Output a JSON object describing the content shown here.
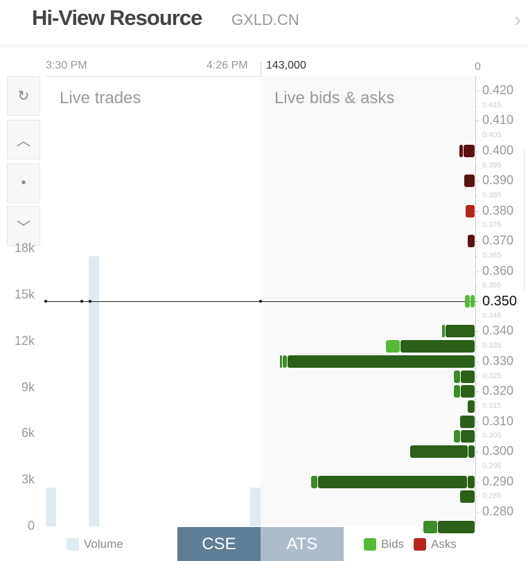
{
  "header": {
    "title": "Hi-View Resource",
    "ticker": "GXLD.CN",
    "next_icon": "chevron-right-icon"
  },
  "time_axis": {
    "start": "3:30 PM",
    "end": "4:26 PM"
  },
  "depth_axis": {
    "max_label": "143,000",
    "min_label": "0",
    "max": 143000
  },
  "panels": {
    "trades": "Live trades",
    "book": "Live bids & asks"
  },
  "controls": [
    {
      "icon": "refresh-icon",
      "glyph": "↻"
    },
    {
      "icon": "chevron-up-icon",
      "glyph": "︿"
    },
    {
      "icon": "dot-icon",
      "glyph": "•"
    },
    {
      "icon": "chevron-down-icon",
      "glyph": "﹀"
    }
  ],
  "chart_data": [
    {
      "type": "bar",
      "title": "Live trades",
      "ylim": [
        0,
        18000
      ],
      "yticks": [
        "0",
        "3k",
        "6k",
        "9k",
        "12k",
        "15k",
        "18k"
      ],
      "ytick_values": [
        0,
        3000,
        6000,
        9000,
        12000,
        15000,
        18000
      ],
      "volume": [
        {
          "time": "3:30 PM",
          "value": 2500
        },
        {
          "time": "3:45 PM",
          "value": 17500
        },
        {
          "time": "4:26 PM",
          "value": 2500
        }
      ],
      "last_price": 0.35,
      "trade_times": [
        "3:30 PM",
        "3:42 PM",
        "3:45 PM",
        "4:26 PM"
      ]
    },
    {
      "type": "bar",
      "title": "Live bids & asks",
      "price_ticks": [
        "0.420",
        "0.410",
        "0.400",
        "0.390",
        "0.380",
        "0.370",
        "0.360",
        "0.350",
        "0.340",
        "0.330",
        "0.320",
        "0.310",
        "0.300",
        "0.290",
        "0.280"
      ],
      "minor_ticks": [
        "0.415",
        "0.405",
        "0.395",
        "0.385",
        "0.375",
        "0.365",
        "0.355",
        "0.345",
        "0.335",
        "0.325",
        "0.315",
        "0.305",
        "0.295",
        "0.285"
      ],
      "current_price": "0.350",
      "xlim": [
        143000,
        0
      ],
      "levels": [
        {
          "price": 0.4,
          "side": "ask",
          "orders": [
            2800,
            7800
          ]
        },
        {
          "price": 0.39,
          "side": "ask",
          "orders": [
            7400
          ]
        },
        {
          "price": 0.38,
          "side": "ask",
          "orders": [
            6500
          ]
        },
        {
          "price": 0.37,
          "side": "ask",
          "orders": [
            5000
          ]
        },
        {
          "price": 0.35,
          "side": "bid",
          "orders": [
            3700,
            3200
          ]
        },
        {
          "price": 0.34,
          "side": "bid",
          "orders": [
            2300,
            19800
          ]
        },
        {
          "price": 0.335,
          "side": "bid",
          "orders": [
            9700,
            49800
          ]
        },
        {
          "price": 0.33,
          "side": "bid",
          "orders": [
            1800,
            3200,
            125000
          ]
        },
        {
          "price": 0.325,
          "side": "bid",
          "orders": [
            4600,
            9700
          ]
        },
        {
          "price": 0.32,
          "side": "bid",
          "orders": [
            4600,
            9700
          ]
        },
        {
          "price": 0.315,
          "side": "bid",
          "orders": [
            5000
          ]
        },
        {
          "price": 0.31,
          "side": "bid",
          "orders": [
            10100
          ]
        },
        {
          "price": 0.305,
          "side": "bid",
          "orders": [
            4600,
            9700
          ]
        },
        {
          "price": 0.3,
          "side": "bid",
          "orders": [
            38700,
            4600
          ]
        },
        {
          "price": 0.29,
          "side": "bid",
          "orders": [
            4600,
            99600,
            5000
          ]
        },
        {
          "price": 0.285,
          "side": "bid",
          "orders": [
            10100
          ]
        },
        {
          "price": 0.275,
          "side": "bid",
          "orders": [
            9700,
            24900
          ]
        }
      ]
    }
  ],
  "tabs": [
    {
      "label": "CSE",
      "active": true
    },
    {
      "label": "ATS",
      "active": false
    }
  ],
  "legend": {
    "volume": "Volume",
    "bids": "Bids",
    "asks": "Asks"
  },
  "colors": {
    "volume": "#deebf2",
    "bids": "#55b938",
    "bid_dark": "#2c5f1a",
    "bid_mid": "#3f8a2a",
    "asks": "#b8241b",
    "ask_dark": "#5a1210",
    "cse": "#5f7d95",
    "ats": "#aebccb"
  }
}
